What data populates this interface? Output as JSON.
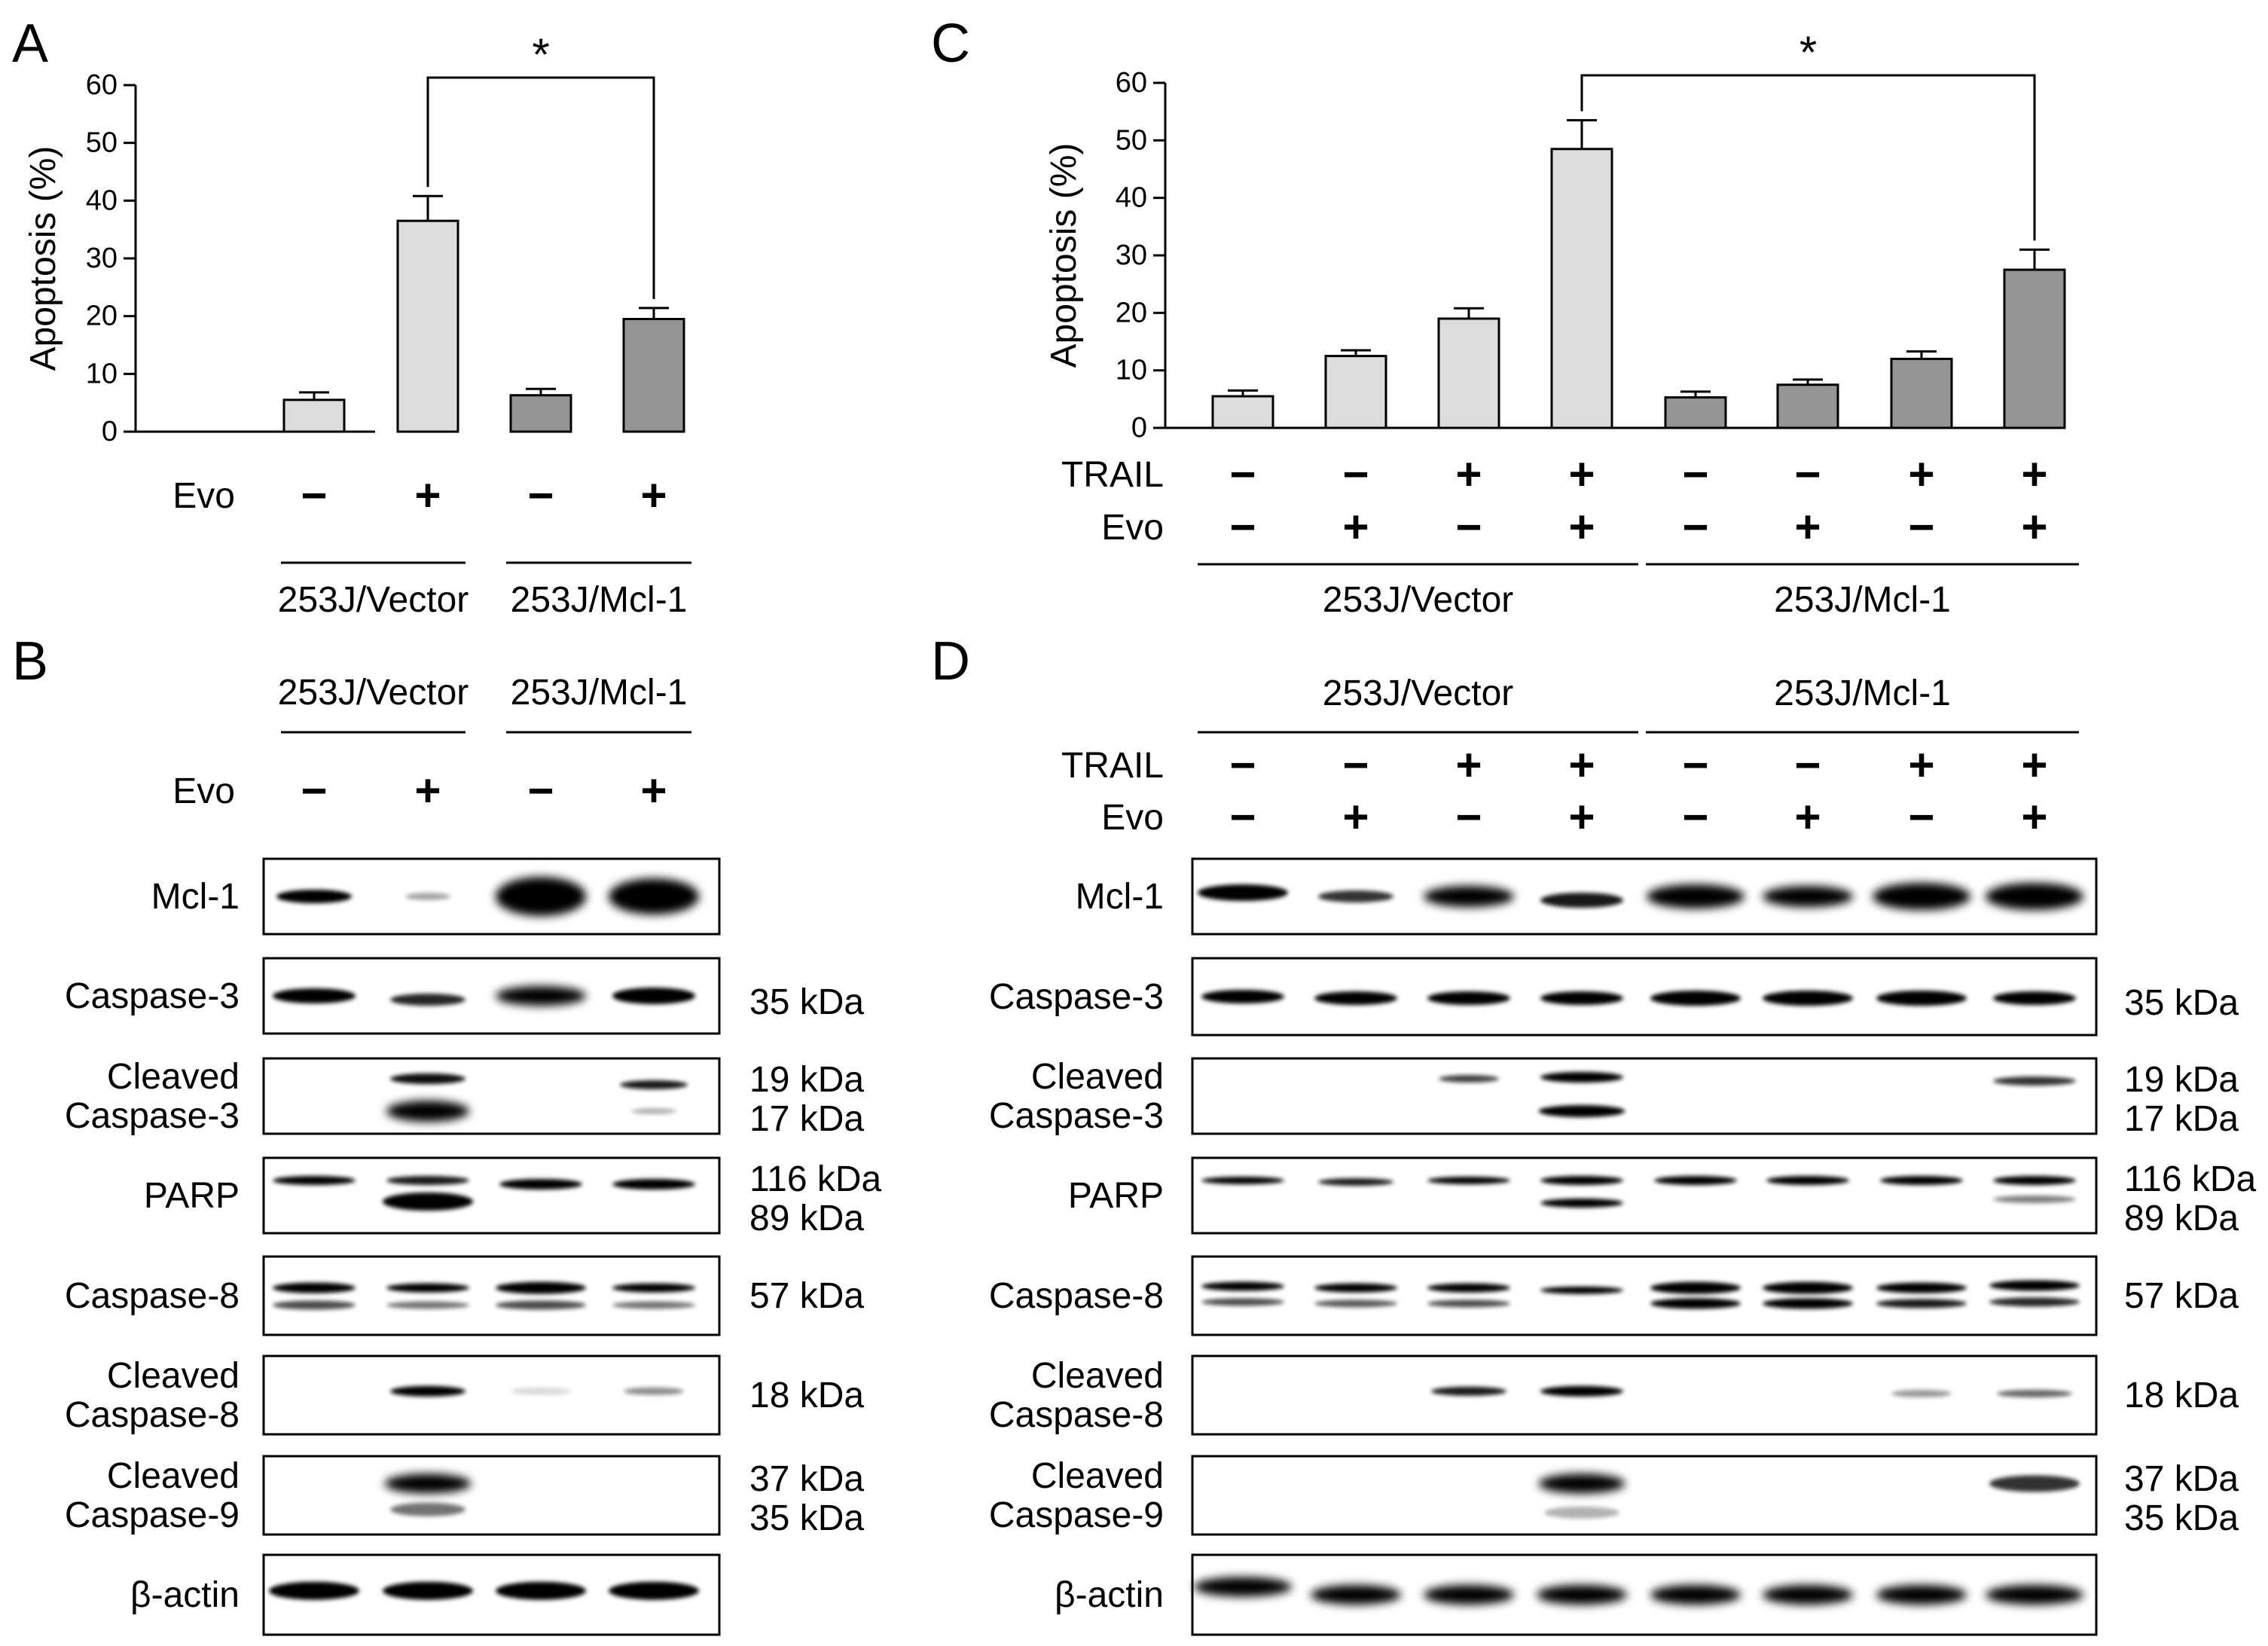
{
  "panels": {
    "A": {
      "letter": "A"
    },
    "B": {
      "letter": "B"
    },
    "C": {
      "letter": "C"
    },
    "D": {
      "letter": "D"
    }
  },
  "colors": {
    "vector_bar": "#DCDCDC",
    "mcl1_bar": "#959595"
  },
  "chart_data": [
    {
      "panel": "A",
      "type": "bar",
      "ylabel": "Apoptosis (%)",
      "ylim": [
        0,
        60
      ],
      "yticks": [
        "0",
        "10",
        "20",
        "30",
        "40",
        "50",
        "60"
      ],
      "categories": [
        "253J/Vector −Evo",
        "253J/Vector +Evo",
        "253J/Mcl-1 −Evo",
        "253J/Mcl-1 +Evo"
      ],
      "values": [
        5.5,
        36.5,
        6.3,
        19.5
      ],
      "errors": [
        1.3,
        4.3,
        1.1,
        1.9
      ],
      "groups": [
        0,
        0,
        1,
        1
      ],
      "treatments": [
        {
          "label": "Evo",
          "signs": [
            "−",
            "+",
            "−",
            "+"
          ]
        }
      ],
      "group_labels": [
        "253J/Vector",
        "253J/Mcl-1"
      ],
      "significance": {
        "from": 1,
        "to": 3,
        "label": "*"
      }
    },
    {
      "panel": "C",
      "type": "bar",
      "ylabel": "Apoptosis (%)",
      "ylim": [
        0,
        60
      ],
      "yticks": [
        "0",
        "10",
        "20",
        "30",
        "40",
        "50",
        "60"
      ],
      "categories": [
        "Vector ctrl",
        "Vector Evo",
        "Vector TRAIL",
        "Vector TRAIL+Evo",
        "Mcl-1 ctrl",
        "Mcl-1 Evo",
        "Mcl-1 TRAIL",
        "Mcl-1 TRAIL+Evo"
      ],
      "values": [
        5.5,
        12.5,
        19.0,
        48.5,
        5.3,
        7.5,
        12.0,
        27.5
      ],
      "errors": [
        1.0,
        1.0,
        1.8,
        5.0,
        1.0,
        0.9,
        1.3,
        3.5
      ],
      "groups": [
        0,
        0,
        0,
        0,
        1,
        1,
        1,
        1
      ],
      "treatments": [
        {
          "label": "TRAIL",
          "signs": [
            "−",
            "−",
            "+",
            "+",
            "−",
            "−",
            "+",
            "+"
          ]
        },
        {
          "label": "Evo",
          "signs": [
            "−",
            "+",
            "−",
            "+",
            "−",
            "+",
            "−",
            "+"
          ]
        }
      ],
      "group_labels": [
        "253J/Vector",
        "253J/Mcl-1"
      ],
      "significance": {
        "from": 3,
        "to": 7,
        "label": "*"
      }
    }
  ],
  "blot_B": {
    "group_labels": [
      "253J/Vector",
      "253J/Mcl-1"
    ],
    "treatments": [
      {
        "label": "Evo",
        "signs": [
          "−",
          "+",
          "−",
          "+"
        ]
      }
    ],
    "rows": [
      {
        "label": [
          "Mcl-1"
        ],
        "sizes": []
      },
      {
        "label": [
          "Caspase-3"
        ],
        "sizes": [
          "35 kDa"
        ]
      },
      {
        "label": [
          "Cleaved",
          "Caspase-3"
        ],
        "sizes": [
          "19 kDa",
          "17 kDa"
        ]
      },
      {
        "label": [
          "PARP"
        ],
        "sizes": [
          "116 kDa",
          "89 kDa"
        ]
      },
      {
        "label": [
          "Caspase-8"
        ],
        "sizes": [
          "57 kDa"
        ]
      },
      {
        "label": [
          "Cleaved",
          "Caspase-8"
        ],
        "sizes": [
          "18 kDa"
        ]
      },
      {
        "label": [
          "Cleaved",
          "Caspase-9"
        ],
        "sizes": [
          "37 kDa",
          "35 kDa"
        ]
      },
      {
        "label": [
          "β-actin"
        ],
        "sizes": []
      }
    ]
  },
  "blot_D": {
    "group_labels": [
      "253J/Vector",
      "253J/Mcl-1"
    ],
    "treatments": [
      {
        "label": "TRAIL",
        "signs": [
          "−",
          "−",
          "+",
          "+",
          "−",
          "−",
          "+",
          "+"
        ]
      },
      {
        "label": "Evo",
        "signs": [
          "−",
          "+",
          "−",
          "+",
          "−",
          "+",
          "−",
          "+"
        ]
      }
    ],
    "rows": [
      {
        "label": [
          "Mcl-1"
        ],
        "sizes": []
      },
      {
        "label": [
          "Caspase-3"
        ],
        "sizes": [
          "35 kDa"
        ]
      },
      {
        "label": [
          "Cleaved",
          "Caspase-3"
        ],
        "sizes": [
          "19 kDa",
          "17 kDa"
        ]
      },
      {
        "label": [
          "PARP"
        ],
        "sizes": [
          "116 kDa",
          "89 kDa"
        ]
      },
      {
        "label": [
          "Caspase-8"
        ],
        "sizes": [
          "57 kDa"
        ]
      },
      {
        "label": [
          "Cleaved",
          "Caspase-8"
        ],
        "sizes": [
          "18 kDa"
        ]
      },
      {
        "label": [
          "Cleaved",
          "Caspase-9"
        ],
        "sizes": [
          "37 kDa",
          "35 kDa"
        ]
      },
      {
        "label": [
          "β-actin"
        ],
        "sizes": []
      }
    ]
  }
}
